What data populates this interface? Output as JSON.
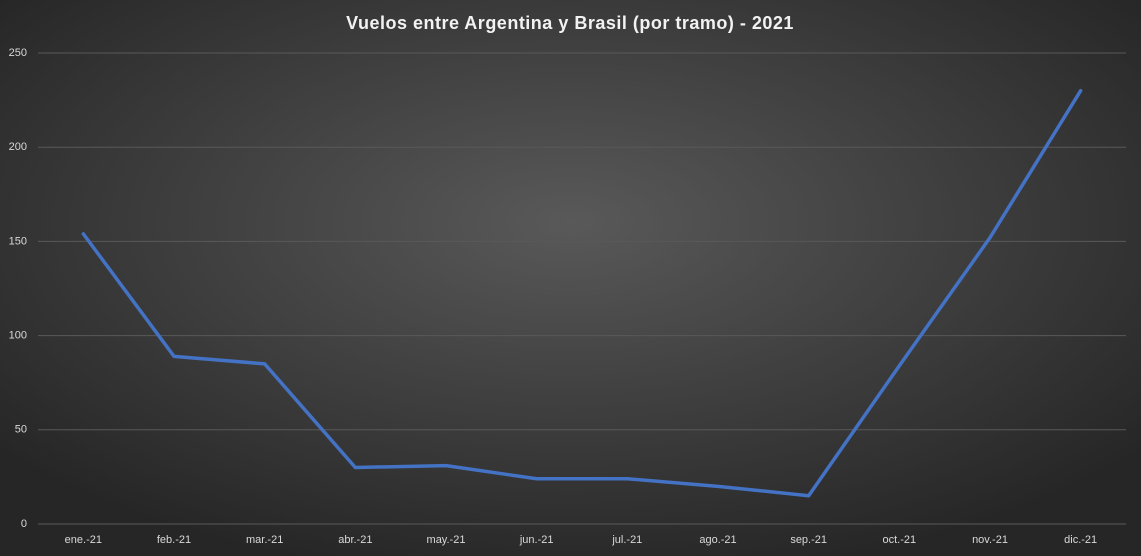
{
  "chart_data": {
    "type": "line",
    "title": "Vuelos entre Argentina y Brasil (por tramo) - 2021",
    "categories": [
      "ene.-21",
      "feb.-21",
      "mar.-21",
      "abr.-21",
      "may.-21",
      "jun.-21",
      "jul.-21",
      "ago.-21",
      "sep.-21",
      "oct.-21",
      "nov.-21",
      "dic.-21"
    ],
    "values": [
      154,
      89,
      85,
      30,
      31,
      24,
      24,
      20,
      15,
      84,
      152,
      230
    ],
    "color": "#4472c4",
    "ylim": [
      0,
      250
    ],
    "yticks": [
      0,
      50,
      100,
      150,
      200,
      250
    ],
    "grid": true
  }
}
